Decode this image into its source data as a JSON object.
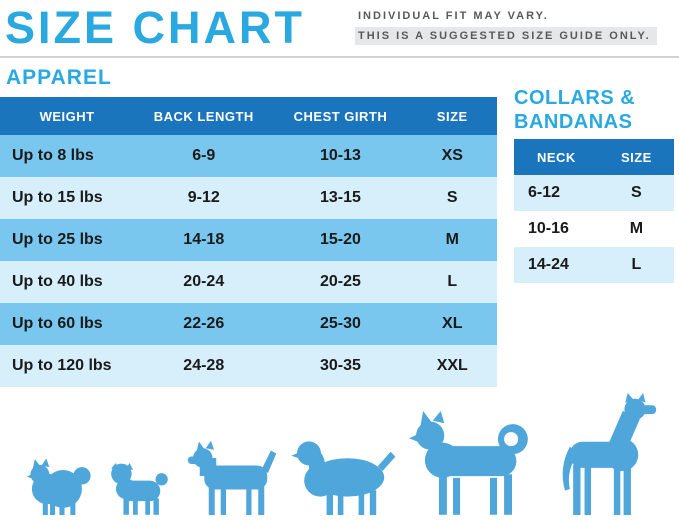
{
  "header": {
    "title": "SIZE CHART",
    "note_line1": "INDIVIDUAL FIT MAY VARY.",
    "note_line2": "THIS IS A SUGGESTED SIZE GUIDE ONLY."
  },
  "apparel": {
    "heading": "APPAREL",
    "columns": [
      "WEIGHT",
      "BACK LENGTH",
      "CHEST GIRTH",
      "SIZE"
    ],
    "rows": [
      [
        "Up to 8 lbs",
        "6-9",
        "10-13",
        "XS"
      ],
      [
        "Up to 15 lbs",
        "9-12",
        "13-15",
        "S"
      ],
      [
        "Up to 25 lbs",
        "14-18",
        "15-20",
        "M"
      ],
      [
        "Up to 40 lbs",
        "20-24",
        "20-25",
        "L"
      ],
      [
        "Up to 60 lbs",
        "22-26",
        "25-30",
        "XL"
      ],
      [
        "Up to 120 lbs",
        "24-28",
        "30-35",
        "XXL"
      ]
    ]
  },
  "collars": {
    "heading_line1": "COLLARS &",
    "heading_line2": "BANDANAS",
    "columns": [
      "NECK",
      "SIZE"
    ],
    "rows": [
      [
        "6-12",
        "S"
      ],
      [
        "10-16",
        "M"
      ],
      [
        "14-24",
        "L"
      ]
    ]
  },
  "dogs": {
    "icons": [
      "pomeranian-icon",
      "pug-icon",
      "terrier-icon",
      "cocker-spaniel-icon",
      "husky-icon",
      "great-dane-icon"
    ]
  },
  "colors": {
    "accent": "#29A9E0",
    "table_header": "#1B75BC",
    "row_strong": "#79C7EF",
    "row_light": "#D7EEFB",
    "note_text": "#58595B",
    "note_highlight": "#E6E7E8",
    "body_text": "#1A1A1A",
    "divider": "#CFD1D2",
    "dog": "#4EA6DB"
  }
}
